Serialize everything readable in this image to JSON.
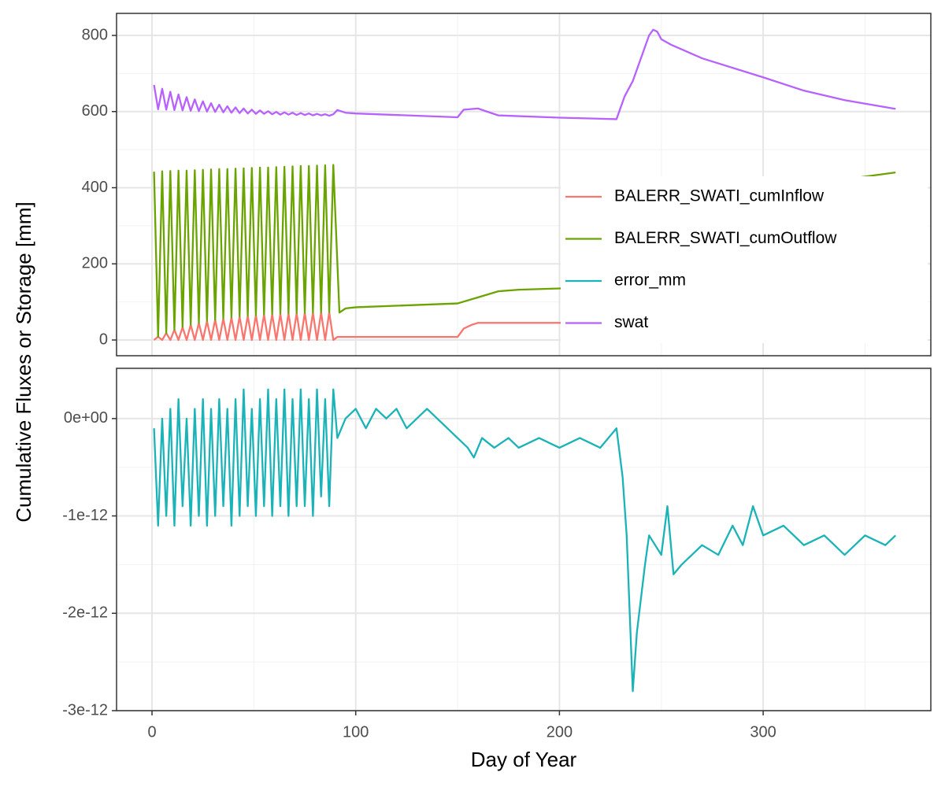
{
  "chart_data": {
    "type": "line",
    "y_label": "Cumulative Fluxes or Storage [mm]",
    "x_label": "Day of Year",
    "xlim": [
      -17.4,
      382.3
    ],
    "xticks": [
      0,
      100,
      200,
      300
    ],
    "grid": true,
    "panels": [
      {
        "ylim": [
          -41.3,
          857.9
        ],
        "yticks": [
          0,
          200,
          400,
          600,
          800
        ]
      },
      {
        "ylim": [
          -3e-12,
          5.16e-13
        ],
        "yticks": [
          {
            "value": -3e-12,
            "label": "-3e-12"
          },
          {
            "value": -2e-12,
            "label": "-2e-12"
          },
          {
            "value": -1e-12,
            "label": "-1e-12"
          },
          {
            "value": 0,
            "label": "0e+00"
          }
        ]
      }
    ],
    "series": [
      {
        "name": "BALERR_SWATI_cumInflow",
        "color": "#F8766D",
        "panel": 0,
        "x": [
          1,
          3,
          5,
          7,
          9,
          11,
          13,
          15,
          17,
          19,
          21,
          23,
          25,
          27,
          29,
          31,
          33,
          35,
          37,
          39,
          41,
          43,
          45,
          47,
          49,
          51,
          53,
          55,
          57,
          59,
          61,
          63,
          65,
          67,
          69,
          71,
          73,
          75,
          77,
          79,
          81,
          83,
          85,
          87,
          89,
          91,
          150,
          153,
          157,
          160,
          228,
          232,
          236,
          240,
          244,
          246,
          365
        ],
        "values": [
          0,
          8.5,
          0,
          18.3,
          0,
          26.7,
          0,
          33.8,
          0,
          39.9,
          0,
          45.1,
          0,
          49.5,
          0,
          53.3,
          0,
          56.5,
          0,
          59.3,
          0,
          61.6,
          0,
          63.5,
          0,
          65.3,
          0,
          66.7,
          0,
          67.9,
          0,
          69.0,
          0,
          69.9,
          0,
          70.6,
          0,
          71.3,
          0,
          71.8,
          0,
          72.3,
          0,
          72.7,
          0,
          8,
          8,
          30,
          40,
          45,
          45,
          100,
          200,
          280,
          345,
          375,
          375
        ]
      },
      {
        "name": "BALERR_SWATI_cumOutflow",
        "color": "#6BA300",
        "panel": 0,
        "x": [
          1,
          3,
          5,
          7,
          9,
          11,
          13,
          15,
          17,
          19,
          21,
          23,
          25,
          27,
          29,
          31,
          33,
          35,
          37,
          39,
          41,
          43,
          45,
          47,
          49,
          51,
          53,
          55,
          57,
          59,
          61,
          63,
          65,
          67,
          69,
          71,
          73,
          75,
          77,
          79,
          81,
          83,
          85,
          87,
          89,
          92,
          95,
          100,
          150,
          160,
          170,
          180,
          228,
          236,
          244,
          246,
          250,
          260,
          280,
          300,
          320,
          340,
          365
        ],
        "values": [
          442,
          9,
          443,
          18,
          444,
          27,
          445,
          34,
          445,
          40,
          446,
          45,
          447,
          50,
          448,
          53,
          449,
          57,
          449,
          59,
          450,
          62,
          451,
          64,
          452,
          65,
          453,
          67,
          453,
          68,
          454,
          69,
          455,
          70,
          456,
          71,
          457,
          71,
          457,
          72,
          458,
          72,
          459,
          73,
          460,
          72,
          83,
          86,
          96,
          112,
          128,
          132,
          140,
          160,
          205,
          240,
          260,
          285,
          330,
          370,
          400,
          422,
          440
        ]
      },
      {
        "name": "error_mm",
        "color": "#1AB3B8",
        "panel": 1,
        "x": [
          1,
          3,
          5,
          7,
          9,
          11,
          13,
          15,
          17,
          19,
          21,
          23,
          25,
          27,
          29,
          31,
          33,
          35,
          37,
          39,
          41,
          43,
          45,
          47,
          49,
          51,
          53,
          55,
          57,
          59,
          61,
          63,
          65,
          67,
          69,
          71,
          73,
          75,
          77,
          79,
          81,
          83,
          85,
          87,
          89,
          91,
          95,
          100,
          105,
          110,
          115,
          120,
          125,
          130,
          135,
          140,
          145,
          150,
          155,
          158,
          162,
          168,
          175,
          180,
          190,
          200,
          210,
          220,
          228,
          231,
          233,
          236,
          238,
          242,
          244,
          247,
          250,
          253,
          256,
          260,
          265,
          270,
          278,
          285,
          290,
          295,
          300,
          310,
          320,
          330,
          340,
          350,
          360,
          365
        ],
        "values": [
          -1e-13,
          -1.1e-12,
          0,
          -1e-12,
          1e-13,
          -1.1e-12,
          2e-13,
          -9e-13,
          0,
          -1.1e-12,
          1e-13,
          -1e-12,
          2e-13,
          -1.1e-12,
          1e-13,
          -1e-12,
          2e-13,
          -9e-13,
          1e-13,
          -1.1e-12,
          2e-13,
          -1e-12,
          3e-13,
          -9e-13,
          1e-13,
          -1e-12,
          2e-13,
          -9e-13,
          3e-13,
          -1e-12,
          2e-13,
          -9e-13,
          3e-13,
          -1e-12,
          2e-13,
          -9e-13,
          3e-13,
          -9e-13,
          2e-13,
          -1e-12,
          3e-13,
          -8e-13,
          2e-13,
          -9e-13,
          3e-13,
          -2e-13,
          0,
          1e-13,
          -1e-13,
          1e-13,
          0,
          1e-13,
          -1e-13,
          0,
          1e-13,
          0,
          -1e-13,
          -2e-13,
          -3e-13,
          -4e-13,
          -2e-13,
          -3e-13,
          -2e-13,
          -3e-13,
          -2e-13,
          -3e-13,
          -2e-13,
          -3e-13,
          -1e-13,
          -6e-13,
          -1.2e-12,
          -2.8e-12,
          -2.2e-12,
          -1.5e-12,
          -1.2e-12,
          -1.3e-12,
          -1.4e-12,
          -9e-13,
          -1.6e-12,
          -1.5e-12,
          -1.4e-12,
          -1.3e-12,
          -1.4e-12,
          -1.1e-12,
          -1.3e-12,
          -9e-13,
          -1.2e-12,
          -1.1e-12,
          -1.3e-12,
          -1.2e-12,
          -1.4e-12,
          -1.2e-12,
          -1.3e-12,
          -1.2e-12
        ]
      },
      {
        "name": "swat",
        "color": "#B761FF",
        "panel": 0,
        "x": [
          1,
          3,
          5,
          7,
          9,
          11,
          13,
          15,
          17,
          19,
          21,
          23,
          25,
          27,
          29,
          31,
          33,
          35,
          37,
          39,
          41,
          43,
          45,
          47,
          49,
          51,
          53,
          55,
          57,
          59,
          61,
          63,
          65,
          67,
          69,
          71,
          73,
          75,
          77,
          79,
          81,
          83,
          85,
          87,
          89,
          91,
          95,
          100,
          150,
          153,
          160,
          170,
          200,
          228,
          232,
          236,
          240,
          244,
          246,
          248,
          250,
          255,
          270,
          300,
          320,
          340,
          365
        ],
        "values": [
          670,
          606,
          660,
          605,
          652,
          604,
          645,
          603,
          638,
          602,
          632,
          601,
          627,
          600,
          622,
          599,
          618,
          598,
          614,
          597,
          611,
          596,
          608,
          595,
          605,
          594,
          603,
          594,
          601,
          593,
          599,
          592,
          598,
          592,
          597,
          591,
          596,
          591,
          595,
          590,
          594,
          590,
          593,
          589,
          593,
          604,
          597,
          595,
          585,
          605,
          608,
          590,
          584,
          580,
          640,
          680,
          740,
          800,
          815,
          810,
          790,
          775,
          740,
          690,
          655,
          630,
          607
        ]
      }
    ]
  }
}
